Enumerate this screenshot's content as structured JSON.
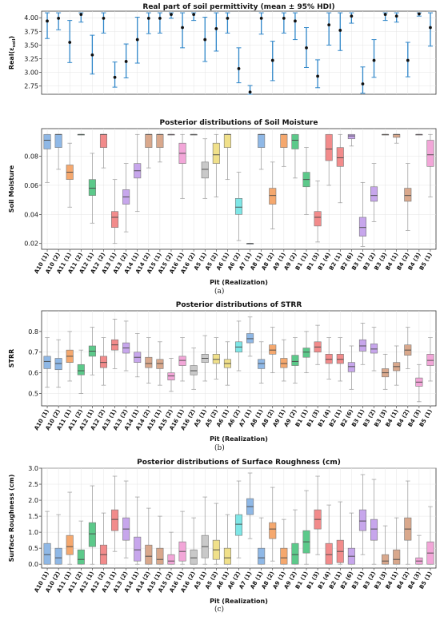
{
  "pits": [
    "A10 (1)",
    "A10 (2)",
    "A11 (1)",
    "A11 (2)",
    "A12 (1)",
    "A12 (2)",
    "A13 (1)",
    "A13 (2)",
    "A14 (1)",
    "A14 (2)",
    "A15 (1)",
    "A15 (2)",
    "A16 (1)",
    "A16 (2)",
    "A5 (1)",
    "A5 (2)",
    "A6 (1)",
    "A6 (2)",
    "A7 (1)",
    "A8 (1)",
    "A8 (2)",
    "A9 (1)",
    "A9 (2)",
    "B1 (1)",
    "B1 (3)",
    "B1 (4)",
    "B2 (1)",
    "B2 (6)",
    "B3 (1)",
    "B3 (2)",
    "B3 (3)",
    "B4 (1)",
    "B4 (2)",
    "B4 (3)",
    "B5 (1)"
  ],
  "box_colors": [
    "#8fb8e6",
    "#8fb8e6",
    "#f5a86e",
    "#5cc98a",
    "#5cc98a",
    "#f28b8b",
    "#f28b8b",
    "#c7a6ec",
    "#c7a6ec",
    "#d9a88c",
    "#d9a88c",
    "#f2a6d8",
    "#f2a6d8",
    "#c9c9c9",
    "#c9c9c9",
    "#f0e08a",
    "#f0e08a",
    "#7fe6e6",
    "#8fb8e6",
    "#8fb8e6",
    "#f5a86e",
    "#f5a86e",
    "#5cc98a",
    "#5cc98a",
    "#f28b8b",
    "#f28b8b",
    "#f28b8b",
    "#c7a6ec",
    "#c7a6ec",
    "#c7a6ec",
    "#d9a88c",
    "#d9a88c",
    "#d9a88c",
    "#f2a6d8",
    "#f2a6d8"
  ],
  "chart_data": [
    {
      "type": "scatter",
      "title": "Real part of soil permittivity (mean ± 95% HDI)",
      "ylabel": "Real(εsoil)",
      "ylim": [
        2.6,
        4.12
      ],
      "yticks": [
        2.75,
        3.0,
        3.25,
        3.5,
        3.75,
        4.0
      ],
      "x": [
        "A10 (1)",
        "A10 (2)",
        "A11 (1)",
        "A11 (2)",
        "A12 (1)",
        "A12 (2)",
        "A13 (1)",
        "A13 (2)",
        "A14 (1)",
        "A14 (2)",
        "A15 (1)",
        "A15 (2)",
        "A16 (1)",
        "A16 (2)",
        "A5 (1)",
        "A5 (2)",
        "A6 (1)",
        "A6 (2)",
        "A7 (1)",
        "A8 (1)",
        "A8 (2)",
        "A9 (1)",
        "A9 (2)",
        "B1 (1)",
        "B1 (3)",
        "B1 (4)",
        "B2 (1)",
        "B2 (6)",
        "B3 (1)",
        "B3 (2)",
        "B3 (3)",
        "B4 (1)",
        "B4 (2)",
        "B4 (3)",
        "B5 (1)"
      ],
      "mean": [
        3.94,
        3.99,
        3.55,
        4.06,
        3.32,
        3.99,
        2.91,
        3.2,
        3.6,
        3.99,
        3.99,
        4.06,
        3.82,
        4.06,
        3.6,
        3.8,
        3.99,
        3.07,
        2.64,
        3.99,
        3.22,
        3.99,
        3.94,
        3.45,
        2.93,
        3.87,
        3.77,
        4.03,
        2.79,
        3.22,
        4.06,
        4.03,
        3.22,
        4.07,
        3.82
      ],
      "lower": [
        3.62,
        3.78,
        3.18,
        3.92,
        2.97,
        3.72,
        2.73,
        2.9,
        3.17,
        3.71,
        3.72,
        3.99,
        3.45,
        3.95,
        3.2,
        3.39,
        3.72,
        2.81,
        2.6,
        3.7,
        2.85,
        3.72,
        3.6,
        3.09,
        2.72,
        3.5,
        3.4,
        3.9,
        2.62,
        2.91,
        3.95,
        3.92,
        2.92,
        4.03,
        3.48
      ],
      "upper": [
        4.09,
        4.09,
        3.95,
        4.09,
        3.68,
        4.09,
        3.19,
        3.52,
        4.01,
        4.09,
        4.09,
        4.09,
        4.09,
        4.09,
        4.01,
        4.09,
        4.09,
        3.45,
        2.76,
        4.09,
        3.57,
        4.09,
        4.09,
        3.82,
        3.23,
        4.09,
        4.09,
        4.09,
        3.1,
        3.6,
        4.09,
        4.09,
        3.55,
        4.09,
        4.09
      ],
      "grid": true
    },
    {
      "type": "box",
      "title": "Posterior distributions of Soil Moisture",
      "ylabel": "Soil Moisture",
      "ylim": [
        0.016,
        0.099
      ],
      "yticks": [
        0.02,
        0.04,
        0.06,
        0.08
      ],
      "yticklabels": [
        "0.02",
        "0.04",
        "0.06",
        "0.08"
      ],
      "categories": [
        "A10 (1)",
        "A10 (2)",
        "A11 (1)",
        "A11 (2)",
        "A12 (1)",
        "A12 (2)",
        "A13 (1)",
        "A13 (2)",
        "A14 (1)",
        "A14 (2)",
        "A15 (1)",
        "A15 (2)",
        "A16 (1)",
        "A16 (2)",
        "A5 (1)",
        "A5 (2)",
        "A6 (1)",
        "A6 (2)",
        "A7 (1)",
        "A8 (1)",
        "A8 (2)",
        "A9 (1)",
        "A9 (2)",
        "B1 (1)",
        "B1 (3)",
        "B1 (4)",
        "B2 (1)",
        "B2 (6)",
        "B3 (1)",
        "B3 (2)",
        "B3 (3)",
        "B4 (1)",
        "B4 (2)",
        "B4 (3)",
        "B5 (1)"
      ],
      "stats": [
        [
          0.062,
          0.085,
          0.091,
          0.095,
          0.095
        ],
        [
          0.071,
          0.086,
          0.095,
          0.095,
          0.095
        ],
        [
          0.045,
          0.064,
          0.069,
          0.074,
          0.089
        ],
        [
          0.095,
          0.095,
          0.095,
          0.095,
          0.095
        ],
        [
          0.034,
          0.053,
          0.058,
          0.064,
          0.082
        ],
        [
          0.072,
          0.086,
          0.095,
          0.095,
          0.095
        ],
        [
          0.02,
          0.031,
          0.038,
          0.042,
          0.064
        ],
        [
          0.028,
          0.047,
          0.052,
          0.057,
          0.075
        ],
        [
          0.042,
          0.065,
          0.07,
          0.075,
          0.095
        ],
        [
          0.072,
          0.086,
          0.095,
          0.095,
          0.095
        ],
        [
          0.076,
          0.086,
          0.095,
          0.095,
          0.095
        ],
        [
          0.095,
          0.095,
          0.095,
          0.095,
          0.095
        ],
        [
          0.051,
          0.075,
          0.082,
          0.089,
          0.095
        ],
        [
          0.095,
          0.095,
          0.095,
          0.095,
          0.095
        ],
        [
          0.051,
          0.065,
          0.071,
          0.076,
          0.092
        ],
        [
          0.052,
          0.075,
          0.081,
          0.089,
          0.095
        ],
        [
          0.064,
          0.086,
          0.095,
          0.095,
          0.095
        ],
        [
          0.022,
          0.04,
          0.045,
          0.051,
          0.069
        ],
        [
          0.02,
          0.02,
          0.02,
          0.02,
          0.02
        ],
        [
          0.071,
          0.086,
          0.095,
          0.095,
          0.095
        ],
        [
          0.03,
          0.047,
          0.053,
          0.058,
          0.076
        ],
        [
          0.073,
          0.086,
          0.095,
          0.095,
          0.095
        ],
        [
          0.065,
          0.085,
          0.091,
          0.095,
          0.095
        ],
        [
          0.04,
          0.059,
          0.064,
          0.069,
          0.086
        ],
        [
          0.021,
          0.032,
          0.038,
          0.042,
          0.063
        ],
        [
          0.06,
          0.077,
          0.085,
          0.095,
          0.095
        ],
        [
          0.048,
          0.073,
          0.079,
          0.086,
          0.095
        ],
        [
          0.087,
          0.092,
          0.094,
          0.095,
          0.095
        ],
        [
          0.018,
          0.025,
          0.031,
          0.038,
          0.062
        ],
        [
          0.035,
          0.049,
          0.053,
          0.059,
          0.075
        ],
        [
          0.095,
          0.095,
          0.095,
          0.095,
          0.095
        ],
        [
          0.089,
          0.093,
          0.095,
          0.095,
          0.095
        ],
        [
          0.029,
          0.049,
          0.053,
          0.058,
          0.075
        ],
        [
          0.095,
          0.095,
          0.095,
          0.095,
          0.095
        ],
        [
          0.052,
          0.073,
          0.081,
          0.091,
          0.095
        ]
      ],
      "xlabel": "Pit (Realization)",
      "grid": true
    },
    {
      "type": "box",
      "title": "Posterior distributions of STRR",
      "ylabel": "STRR",
      "ylim": [
        0.44,
        0.9
      ],
      "yticks": [
        0.5,
        0.6,
        0.7,
        0.8
      ],
      "yticklabels": [
        "0.5",
        "0.6",
        "0.7",
        "0.8"
      ],
      "categories": [
        "A10 (1)",
        "A10 (2)",
        "A11 (1)",
        "A11 (2)",
        "A12 (1)",
        "A12 (2)",
        "A13 (1)",
        "A13 (2)",
        "A14 (1)",
        "A14 (2)",
        "A15 (1)",
        "A15 (2)",
        "A16 (1)",
        "A16 (2)",
        "A5 (1)",
        "A5 (2)",
        "A6 (1)",
        "A6 (2)",
        "A7 (1)",
        "A8 (1)",
        "A8 (2)",
        "A9 (1)",
        "A9 (2)",
        "B1 (1)",
        "B1 (3)",
        "B1 (4)",
        "B2 (1)",
        "B2 (6)",
        "B3 (1)",
        "B3 (2)",
        "B3 (3)",
        "B4 (1)",
        "B4 (2)",
        "B4 (3)",
        "B5 (1)"
      ],
      "stats": [
        [
          0.53,
          0.62,
          0.655,
          0.68,
          0.77
        ],
        [
          0.53,
          0.615,
          0.645,
          0.67,
          0.76
        ],
        [
          0.56,
          0.65,
          0.68,
          0.71,
          0.8
        ],
        [
          0.5,
          0.59,
          0.61,
          0.64,
          0.71
        ],
        [
          0.59,
          0.68,
          0.705,
          0.73,
          0.82
        ],
        [
          0.54,
          0.625,
          0.65,
          0.68,
          0.77
        ],
        [
          0.62,
          0.71,
          0.735,
          0.76,
          0.86
        ],
        [
          0.61,
          0.695,
          0.72,
          0.745,
          0.85
        ],
        [
          0.58,
          0.65,
          0.675,
          0.7,
          0.79
        ],
        [
          0.55,
          0.625,
          0.645,
          0.675,
          0.77
        ],
        [
          0.54,
          0.62,
          0.645,
          0.665,
          0.75
        ],
        [
          0.51,
          0.565,
          0.585,
          0.6,
          0.67
        ],
        [
          0.56,
          0.635,
          0.66,
          0.68,
          0.77
        ],
        [
          0.52,
          0.59,
          0.61,
          0.635,
          0.72
        ],
        [
          0.56,
          0.65,
          0.67,
          0.69,
          0.78
        ],
        [
          0.57,
          0.645,
          0.665,
          0.69,
          0.77
        ],
        [
          0.54,
          0.625,
          0.645,
          0.665,
          0.75
        ],
        [
          0.61,
          0.7,
          0.725,
          0.75,
          0.85
        ],
        [
          0.68,
          0.745,
          0.765,
          0.79,
          0.87
        ],
        [
          0.55,
          0.62,
          0.645,
          0.665,
          0.75
        ],
        [
          0.6,
          0.69,
          0.71,
          0.735,
          0.82
        ],
        [
          0.56,
          0.625,
          0.645,
          0.67,
          0.76
        ],
        [
          0.55,
          0.635,
          0.655,
          0.685,
          0.77
        ],
        [
          0.6,
          0.675,
          0.7,
          0.72,
          0.8
        ],
        [
          0.64,
          0.7,
          0.725,
          0.75,
          0.83
        ],
        [
          0.57,
          0.645,
          0.665,
          0.69,
          0.77
        ],
        [
          0.56,
          0.645,
          0.665,
          0.69,
          0.77
        ],
        [
          0.52,
          0.605,
          0.63,
          0.65,
          0.73
        ],
        [
          0.64,
          0.705,
          0.73,
          0.76,
          0.84
        ],
        [
          0.61,
          0.695,
          0.715,
          0.74,
          0.82
        ],
        [
          0.52,
          0.58,
          0.6,
          0.62,
          0.69
        ],
        [
          0.54,
          0.61,
          0.63,
          0.65,
          0.73
        ],
        [
          0.62,
          0.685,
          0.71,
          0.735,
          0.82
        ],
        [
          0.46,
          0.535,
          0.555,
          0.575,
          0.64
        ],
        [
          0.56,
          0.635,
          0.66,
          0.69,
          0.77
        ]
      ],
      "xlabel": "Pit (Realization)",
      "grid": true
    },
    {
      "type": "box",
      "title": "Posterior distributions of Surface Roughness (cm)",
      "ylabel": "Surface Roughness (cm)",
      "ylim": [
        -0.12,
        3.0
      ],
      "yticks": [
        0.0,
        0.5,
        1.0,
        1.5,
        2.0,
        2.5,
        3.0
      ],
      "yticklabels": [
        "0.0",
        "0.5",
        "1.0",
        "1.5",
        "2.0",
        "2.5",
        "3.0"
      ],
      "categories": [
        "A10 (1)",
        "A10 (2)",
        "A11 (1)",
        "A11 (2)",
        "A12 (1)",
        "A12 (2)",
        "A13 (1)",
        "A13 (2)",
        "A14 (1)",
        "A14 (2)",
        "A15 (1)",
        "A15 (2)",
        "A16 (1)",
        "A16 (2)",
        "A5 (1)",
        "A5 (2)",
        "A6 (1)",
        "A6 (2)",
        "A7 (1)",
        "A8 (1)",
        "A8 (2)",
        "A9 (1)",
        "A9 (2)",
        "B1 (1)",
        "B1 (3)",
        "B1 (4)",
        "B2 (1)",
        "B2 (6)",
        "B3 (1)",
        "B3 (2)",
        "B3 (3)",
        "B4 (1)",
        "B4 (2)",
        "B4 (3)",
        "B5 (1)"
      ],
      "stats": [
        [
          0.0,
          0.0,
          0.3,
          0.65,
          1.65
        ],
        [
          0.0,
          0.0,
          0.2,
          0.5,
          1.55
        ],
        [
          0.0,
          0.3,
          0.55,
          0.9,
          2.25
        ],
        [
          0.0,
          0.0,
          0.15,
          0.45,
          1.35
        ],
        [
          0.0,
          0.55,
          0.95,
          1.3,
          2.45
        ],
        [
          0.0,
          0.0,
          0.3,
          0.6,
          1.6
        ],
        [
          0.4,
          1.05,
          1.4,
          1.7,
          2.75
        ],
        [
          0.2,
          0.75,
          1.1,
          1.45,
          2.6
        ],
        [
          0.0,
          0.1,
          0.45,
          0.85,
          2.1
        ],
        [
          0.0,
          0.0,
          0.25,
          0.6,
          1.75
        ],
        [
          0.0,
          0.0,
          0.15,
          0.5,
          1.5
        ],
        [
          0.0,
          0.0,
          0.1,
          0.3,
          1.0
        ],
        [
          0.0,
          0.1,
          0.4,
          0.7,
          1.65
        ],
        [
          0.0,
          0.0,
          0.2,
          0.45,
          1.45
        ],
        [
          0.0,
          0.2,
          0.55,
          0.9,
          2.1
        ],
        [
          0.0,
          0.15,
          0.45,
          0.75,
          1.9
        ],
        [
          0.0,
          0.0,
          0.2,
          0.5,
          1.55
        ],
        [
          0.2,
          0.9,
          1.25,
          1.55,
          2.6
        ],
        [
          0.8,
          1.55,
          1.8,
          2.05,
          2.85
        ],
        [
          0.0,
          0.0,
          0.2,
          0.5,
          1.45
        ],
        [
          0.1,
          0.8,
          1.1,
          1.3,
          2.4
        ],
        [
          0.0,
          0.0,
          0.2,
          0.5,
          1.4
        ],
        [
          0.0,
          0.0,
          0.3,
          0.65,
          1.7
        ],
        [
          0.0,
          0.35,
          0.7,
          1.05,
          2.3
        ],
        [
          0.3,
          1.1,
          1.4,
          1.7,
          2.75
        ],
        [
          0.0,
          0.0,
          0.3,
          0.65,
          1.85
        ],
        [
          0.0,
          0.05,
          0.4,
          0.75,
          1.95
        ],
        [
          0.0,
          0.0,
          0.25,
          0.5,
          1.6
        ],
        [
          0.3,
          1.05,
          1.35,
          1.7,
          2.8
        ],
        [
          0.0,
          0.75,
          1.1,
          1.4,
          2.65
        ],
        [
          0.0,
          0.0,
          0.1,
          0.3,
          1.2
        ],
        [
          0.0,
          0.0,
          0.15,
          0.45,
          1.45
        ],
        [
          0.0,
          0.75,
          1.1,
          1.45,
          2.6
        ],
        [
          0.0,
          0.0,
          0.1,
          0.2,
          0.9
        ],
        [
          0.0,
          0.0,
          0.35,
          0.7,
          1.8
        ]
      ],
      "xlabel": "Pit (Realization)",
      "grid": true
    }
  ],
  "captions": {
    "a": "(a)",
    "b": "(b)",
    "c": "(c)"
  }
}
